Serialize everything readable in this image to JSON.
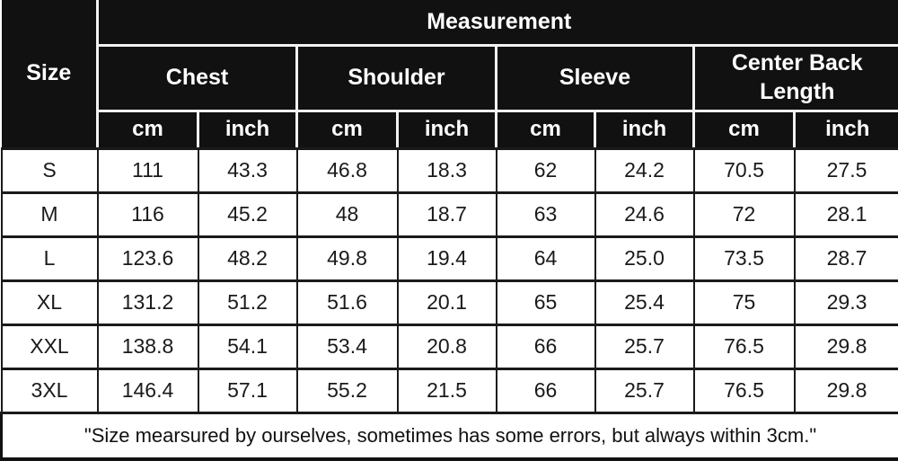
{
  "header": {
    "size_label": "Size",
    "measurement_label": "Measurement",
    "columns": [
      {
        "label": "Chest",
        "units": [
          "cm",
          "inch"
        ]
      },
      {
        "label": "Shoulder",
        "units": [
          "cm",
          "inch"
        ]
      },
      {
        "label": "Sleeve",
        "units": [
          "cm",
          "inch"
        ]
      },
      {
        "label": "Center Back Length",
        "units": [
          "cm",
          "inch"
        ]
      }
    ]
  },
  "rows": [
    {
      "size": "S",
      "values": [
        "111",
        "43.3",
        "46.8",
        "18.3",
        "62",
        "24.2",
        "70.5",
        "27.5"
      ]
    },
    {
      "size": "M",
      "values": [
        "116",
        "45.2",
        "48",
        "18.7",
        "63",
        "24.6",
        "72",
        "28.1"
      ]
    },
    {
      "size": "L",
      "values": [
        "123.6",
        "48.2",
        "49.8",
        "19.4",
        "64",
        "25.0",
        "73.5",
        "28.7"
      ]
    },
    {
      "size": "XL",
      "values": [
        "131.2",
        "51.2",
        "51.6",
        "20.1",
        "65",
        "25.4",
        "75",
        "29.3"
      ]
    },
    {
      "size": "XXL",
      "values": [
        "138.8",
        "54.1",
        "53.4",
        "20.8",
        "66",
        "25.7",
        "76.5",
        "29.8"
      ]
    },
    {
      "size": "3XL",
      "values": [
        "146.4",
        "57.1",
        "55.2",
        "21.5",
        "66",
        "25.7",
        "76.5",
        "29.8"
      ]
    }
  ],
  "footer": {
    "note": "\"Size mearsured by ourselves, sometimes has some errors, but always within 3cm.\""
  },
  "colors": {
    "header_bg": "#111111",
    "header_text": "#ffffff",
    "header_divider": "#f2f2f2",
    "body_bg": "#ffffff",
    "body_text": "#1a1a1a",
    "body_border": "#1a1a1a"
  },
  "chart_data": {
    "type": "table",
    "title": "Measurement",
    "columns": [
      "Size",
      "Chest cm",
      "Chest inch",
      "Shoulder cm",
      "Shoulder inch",
      "Sleeve cm",
      "Sleeve inch",
      "Center Back Length cm",
      "Center Back Length inch"
    ],
    "rows": [
      [
        "S",
        111,
        43.3,
        46.8,
        18.3,
        62,
        24.2,
        70.5,
        27.5
      ],
      [
        "M",
        116,
        45.2,
        48,
        18.7,
        63,
        24.6,
        72,
        28.1
      ],
      [
        "L",
        123.6,
        48.2,
        49.8,
        19.4,
        64,
        25.0,
        73.5,
        28.7
      ],
      [
        "XL",
        131.2,
        51.2,
        51.6,
        20.1,
        65,
        25.4,
        75,
        29.3
      ],
      [
        "XXL",
        138.8,
        54.1,
        53.4,
        20.8,
        66,
        25.7,
        76.5,
        29.8
      ],
      [
        "3XL",
        146.4,
        57.1,
        55.2,
        21.5,
        66,
        25.7,
        76.5,
        29.8
      ]
    ],
    "footnote": "\"Size mearsured by ourselves, sometimes has some errors, but always within 3cm.\""
  }
}
